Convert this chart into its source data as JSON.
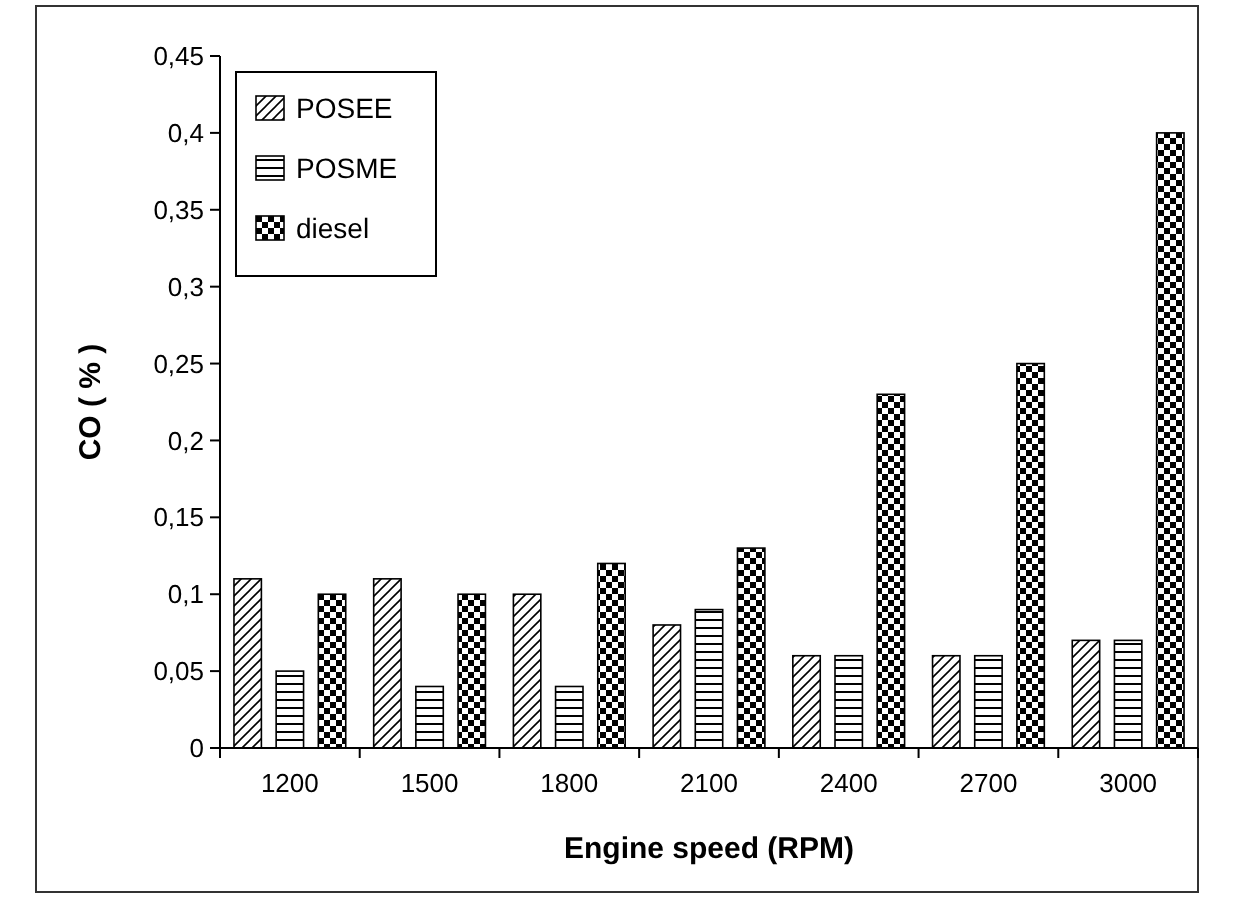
{
  "chart_data": {
    "type": "bar",
    "xlabel": "Engine speed (RPM)",
    "ylabel": "CO ( % )",
    "categories": [
      "1200",
      "1500",
      "1800",
      "2100",
      "2400",
      "2700",
      "3000"
    ],
    "series": [
      {
        "name": "POSEE",
        "color": "#000000",
        "values": [
          0.11,
          0.11,
          0.1,
          0.08,
          0.06,
          0.06,
          0.07
        ]
      },
      {
        "name": "POSME",
        "color": "#000000",
        "values": [
          0.05,
          0.04,
          0.04,
          0.09,
          0.06,
          0.06,
          0.07
        ]
      },
      {
        "name": "diesel",
        "color": "#000000",
        "values": [
          0.1,
          0.1,
          0.12,
          0.13,
          0.23,
          0.25,
          0.4
        ]
      }
    ],
    "ylim": [
      0,
      0.45
    ],
    "yticks": [
      0,
      {
        "value": 0.05,
        "label": "0,05"
      },
      {
        "value": 0.1,
        "label": "0,1"
      },
      {
        "value": 0.15,
        "label": "0,15"
      },
      {
        "value": 0.2,
        "label": "0,2"
      },
      {
        "value": 0.25,
        "label": "0,25"
      },
      {
        "value": 0.3,
        "label": "0,3"
      },
      {
        "value": 0.35,
        "label": "0,35"
      },
      {
        "value": 0.4,
        "label": "0,4"
      },
      {
        "value": 0.45,
        "label": "0,45"
      }
    ],
    "grid": false,
    "legend": "top left"
  }
}
